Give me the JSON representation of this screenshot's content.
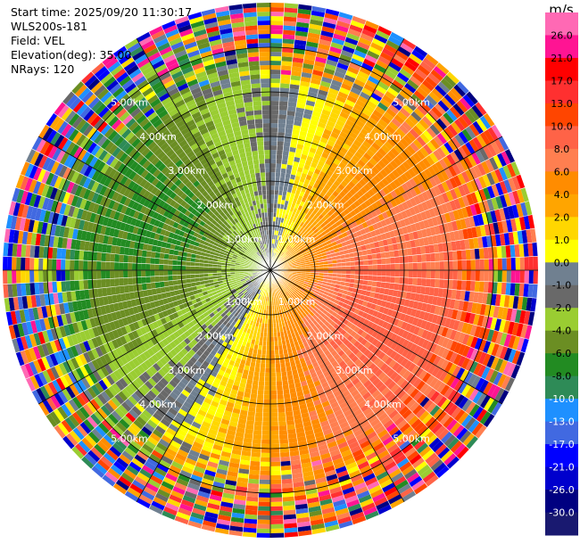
{
  "header": {
    "start_time": "Start time: 2025/09/20 11:30:17",
    "instrument": "WLS200s-181",
    "field": "Field: VEL",
    "elevation": "Elevation(deg): 35.00",
    "nrays": "NRays: 120"
  },
  "chart_data": {
    "type": "ppi-polar-heatmap",
    "field": "VEL",
    "units": "m/s",
    "n_rays": 120,
    "elevation_deg": 35.0,
    "range_rings_km": [
      1.0,
      2.0,
      3.0,
      4.0,
      5.0
    ],
    "range_labels": [
      "1.00km",
      "2.00km",
      "3.00km",
      "4.00km",
      "5.00km"
    ],
    "max_range_km": 6.0,
    "spokes_deg": [
      0,
      30,
      60,
      90,
      120,
      150,
      180,
      210,
      240,
      270,
      300,
      330
    ],
    "colorbar": {
      "label": "m/s",
      "tick_labels": [
        "26.0",
        "21.0",
        "17.0",
        "13.0",
        "10.0",
        "8.0",
        "6.0",
        "4.0",
        "2.0",
        "1.0",
        "0.0",
        "-1.0",
        "-2.0",
        "-4.0",
        "-6.0",
        "-8.0",
        "-10.0",
        "-13.0",
        "-17.0",
        "-21.0",
        "-26.0",
        "-30.0"
      ],
      "boundaries": [
        30,
        26,
        21,
        17,
        13,
        10,
        8,
        6,
        4,
        2,
        1,
        0,
        -1,
        -2,
        -4,
        -6,
        -8,
        -10,
        -13,
        -17,
        -21,
        -26,
        -30
      ],
      "colors": [
        "#ff69b4",
        "#ff1493",
        "#ff0000",
        "#ff3030",
        "#ff4500",
        "#ff6347",
        "#ff7f50",
        "#ff8c00",
        "#ffa500",
        "#ffd700",
        "#ffff00",
        "#708090",
        "#696969",
        "#9acd32",
        "#6b8e23",
        "#228b22",
        "#2e8b57",
        "#1e90ff",
        "#4169e1",
        "#0000ff",
        "#0000cd",
        "#000080",
        "#191970"
      ]
    },
    "pattern_description_values": {
      "northeast_to_east_mean_ms": 7.0,
      "southeast_mean_ms": 9.0,
      "southwest_mean_ms": -5.0,
      "west_mean_ms": -11.0,
      "northwest_mean_ms": -7.0
    }
  }
}
